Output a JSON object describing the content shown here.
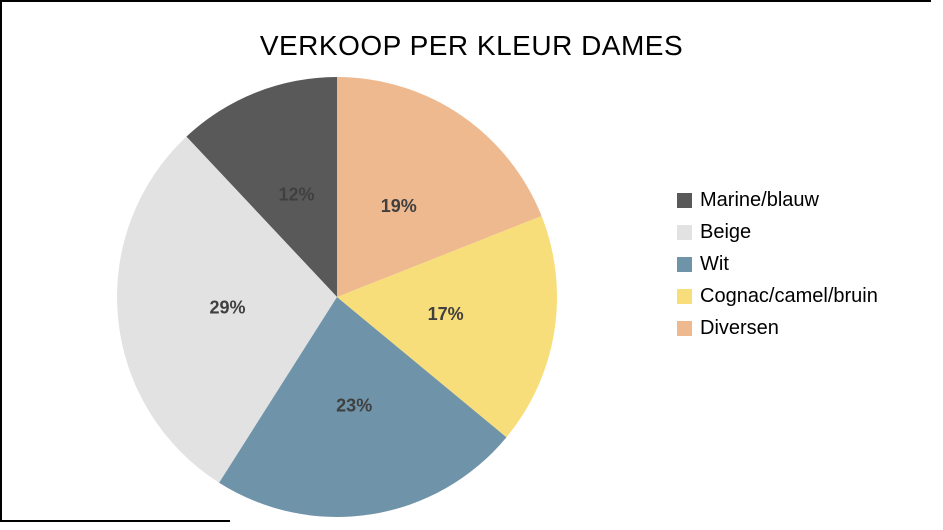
{
  "chart_data": {
    "type": "pie",
    "title": "VERKOOP PER KLEUR DAMES",
    "categories": [
      "Marine/blauw",
      "Beige",
      "Wit",
      "Cognac/camel/bruin",
      "Diversen"
    ],
    "values": [
      12,
      29,
      23,
      17,
      19
    ],
    "labels": [
      "12%",
      "29%",
      "23%",
      "17%",
      "19%"
    ],
    "colors": [
      "#595959",
      "#E2E2E2",
      "#6F94A9",
      "#F7DE7B",
      "#EEB98F"
    ],
    "label_color": "#404040",
    "title_color": "#000000",
    "legend_position": "right",
    "start_angle_deg": 90,
    "direction": "counterclockwise",
    "total": 100
  }
}
